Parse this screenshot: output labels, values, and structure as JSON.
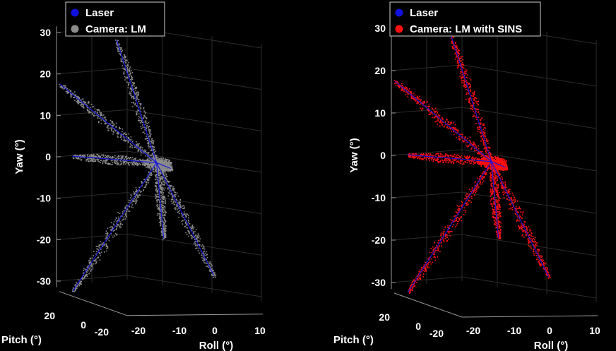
{
  "chart_data": [
    {
      "type": "scatter",
      "projection": "3d",
      "title": "",
      "xlabel": "Roll (°)",
      "ylabel": "Pitch (°)",
      "zlabel": "Yaw (°)",
      "xlim": [
        -25,
        12
      ],
      "ylim": [
        -25,
        25
      ],
      "zlim": [
        -32,
        32
      ],
      "xticks": [
        "-20",
        "-10",
        "0",
        "10"
      ],
      "yticks": [
        "20",
        "0",
        "-20"
      ],
      "zticks": [
        "30",
        "20",
        "10",
        "0",
        "-10",
        "-20",
        "-30"
      ],
      "grid": true,
      "legend_position": "top-left",
      "legend": [
        {
          "label": "Laser",
          "color": "#1010e0"
        },
        {
          "label": "Camera: LM",
          "color": "#8c8c8c"
        }
      ],
      "series": [
        {
          "name": "Laser",
          "color": "#1010e0",
          "points": [
            [
              -6,
              -3,
              -2
            ],
            [
              -17,
              -20,
              25
            ],
            [
              -6,
              -3,
              -2
            ],
            [
              -26,
              -6,
              16
            ],
            [
              -6,
              -3,
              -2
            ],
            [
              -22,
              3,
              0
            ],
            [
              -6,
              -3,
              -2
            ],
            [
              -4,
              -8,
              -4
            ],
            [
              -6,
              -3,
              -2
            ],
            [
              -20,
              14,
              -31
            ],
            [
              -6,
              -3,
              -2
            ],
            [
              3,
              -18,
              -31
            ],
            [
              -6,
              -3,
              -2
            ],
            [
              -2,
              12,
              -18
            ]
          ]
        },
        {
          "name": "Camera: LM",
          "color": "#8c8c8c",
          "points": [
            [
              -17,
              -20,
              25
            ],
            [
              -26,
              -6,
              16
            ],
            [
              -22,
              3,
              0
            ],
            [
              -4,
              -8,
              -4
            ],
            [
              -20,
              14,
              -31
            ],
            [
              3,
              -18,
              -31
            ],
            [
              -2,
              12,
              -18
            ]
          ]
        }
      ]
    },
    {
      "type": "scatter",
      "projection": "3d",
      "title": "",
      "xlabel": "Roll (°)",
      "ylabel": "Pitch (°)",
      "zlabel": "Yaw (°)",
      "xlim": [
        -25,
        12
      ],
      "ylim": [
        -25,
        25
      ],
      "zlim": [
        -32,
        32
      ],
      "xticks": [
        "-20",
        "-10",
        "0",
        "10"
      ],
      "yticks": [
        "20",
        "0",
        "-20"
      ],
      "zticks": [
        "30",
        "20",
        "10",
        "0",
        "-10",
        "-20",
        "-30"
      ],
      "grid": true,
      "legend_position": "top-left",
      "legend": [
        {
          "label": "Laser",
          "color": "#1010e0"
        },
        {
          "label": "Camera: LM with SINS",
          "color": "#ff1010"
        }
      ],
      "series": [
        {
          "name": "Laser",
          "color": "#1010e0",
          "points": [
            [
              -6,
              -3,
              -2
            ],
            [
              -17,
              -20,
              25
            ],
            [
              -6,
              -3,
              -2
            ],
            [
              -26,
              -6,
              16
            ],
            [
              -6,
              -3,
              -2
            ],
            [
              -22,
              3,
              0
            ],
            [
              -6,
              -3,
              -2
            ],
            [
              -4,
              -8,
              -4
            ],
            [
              -6,
              -3,
              -2
            ],
            [
              -20,
              14,
              -31
            ],
            [
              -6,
              -3,
              -2
            ],
            [
              3,
              -18,
              -31
            ],
            [
              -6,
              -3,
              -2
            ],
            [
              -2,
              12,
              -18
            ]
          ]
        },
        {
          "name": "Camera: LM with SINS",
          "color": "#ff1010",
          "points": [
            [
              -17,
              -20,
              25
            ],
            [
              -26,
              -6,
              16
            ],
            [
              -22,
              3,
              0
            ],
            [
              -4,
              -8,
              -4
            ],
            [
              -20,
              14,
              -31
            ],
            [
              3,
              -18,
              -31
            ],
            [
              -2,
              12,
              -18
            ]
          ]
        }
      ]
    }
  ]
}
